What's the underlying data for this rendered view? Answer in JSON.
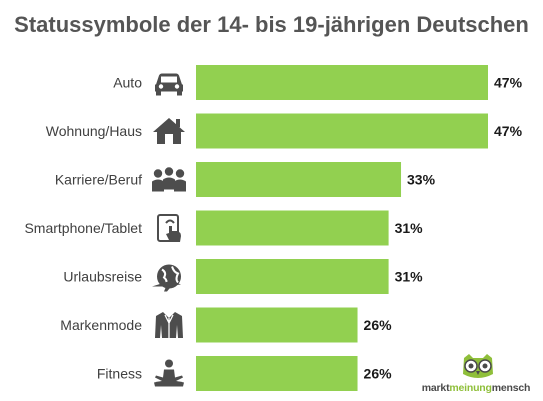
{
  "chart_data": {
    "type": "bar",
    "orientation": "horizontal",
    "title": "Statussymbole der 14- bis 19-jährigen Deutschen",
    "categories": [
      "Auto",
      "Wohnung/Haus",
      "Karriere/Beruf",
      "Smartphone/Tablet",
      "Urlaubsreise",
      "Markenmode",
      "Fitness"
    ],
    "values": [
      47,
      47,
      33,
      31,
      31,
      26,
      26
    ],
    "value_labels": [
      "47%",
      "47%",
      "33%",
      "31%",
      "31%",
      "26%",
      "26%"
    ],
    "unit": "%",
    "xlim": [
      0,
      47
    ],
    "grid": false,
    "bar_color": "#92d050",
    "icons": [
      "car-icon",
      "house-icon",
      "people-icon",
      "tablet-touch-icon",
      "globe-plane-icon",
      "jacket-icon",
      "meditation-icon"
    ]
  },
  "logo": {
    "text_left": "markt",
    "text_mid": "meinung",
    "text_right": "mensch",
    "icon": "owl-icon",
    "accent": "#8fbf3a"
  }
}
